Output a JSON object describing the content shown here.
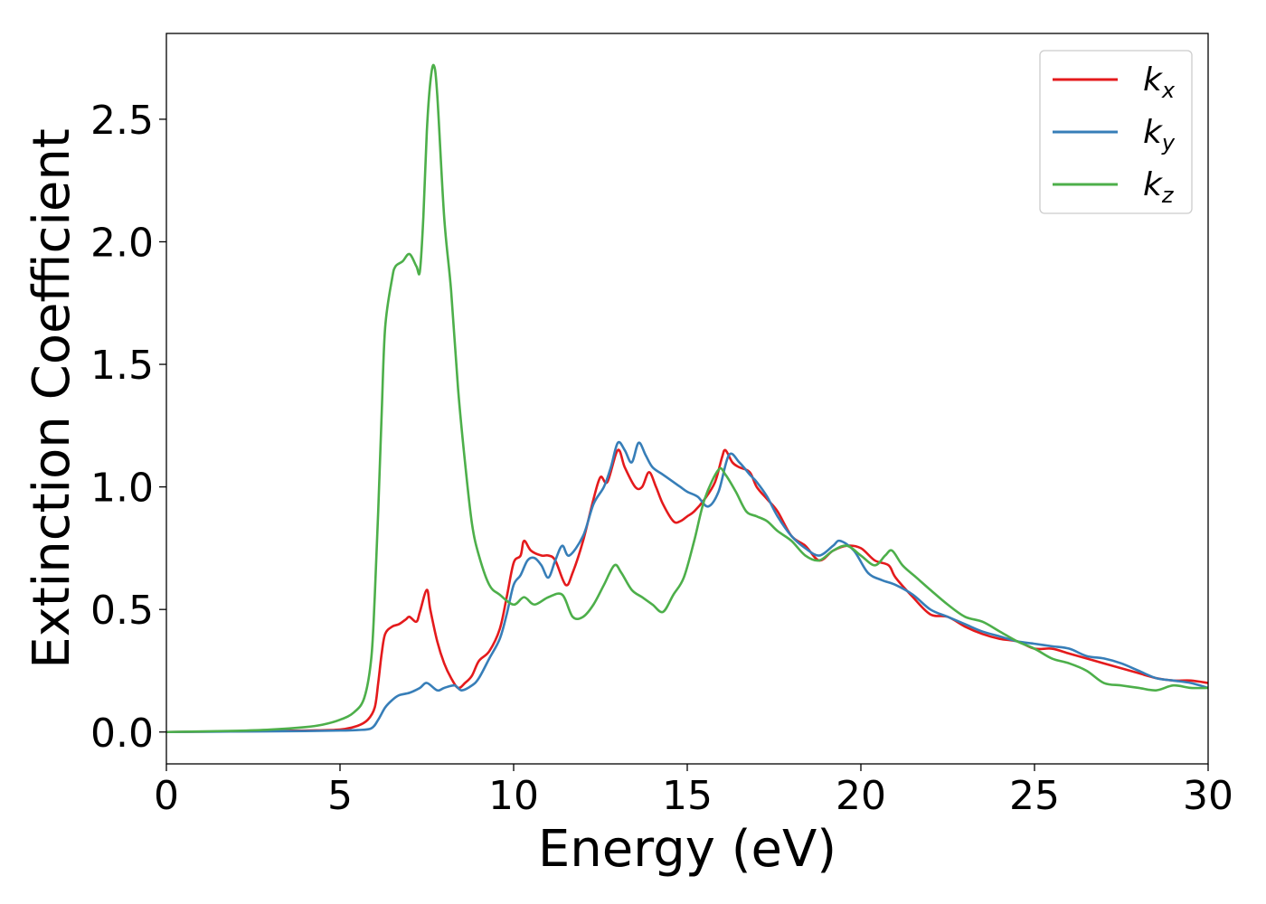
{
  "chart_data": {
    "type": "line",
    "xlabel": "Energy (eV)",
    "ylabel": "Extinction Coefficient",
    "xlim": [
      0,
      30
    ],
    "ylim": [
      -0.13,
      2.85
    ],
    "xticks": [
      0,
      5,
      10,
      15,
      20,
      25,
      30
    ],
    "xtick_labels": [
      "0",
      "5",
      "10",
      "15",
      "20",
      "25",
      "30"
    ],
    "yticks": [
      0.0,
      0.5,
      1.0,
      1.5,
      2.0,
      2.5
    ],
    "ytick_labels": [
      "0.0",
      "0.5",
      "1.0",
      "1.5",
      "2.0",
      "2.5"
    ],
    "grid": false,
    "legend_position": "top-right",
    "series": [
      {
        "name": "k",
        "subscript": "x",
        "color": "#e41a1c",
        "points": [
          [
            0,
            0
          ],
          [
            2,
            0.003
          ],
          [
            4,
            0.006
          ],
          [
            5,
            0.01
          ],
          [
            5.5,
            0.025
          ],
          [
            5.8,
            0.05
          ],
          [
            6.0,
            0.1
          ],
          [
            6.1,
            0.2
          ],
          [
            6.2,
            0.32
          ],
          [
            6.3,
            0.4
          ],
          [
            6.5,
            0.43
          ],
          [
            6.7,
            0.44
          ],
          [
            6.9,
            0.46
          ],
          [
            7.0,
            0.47
          ],
          [
            7.2,
            0.45
          ],
          [
            7.3,
            0.49
          ],
          [
            7.5,
            0.58
          ],
          [
            7.6,
            0.5
          ],
          [
            7.8,
            0.37
          ],
          [
            8.0,
            0.28
          ],
          [
            8.2,
            0.22
          ],
          [
            8.4,
            0.18
          ],
          [
            8.6,
            0.2
          ],
          [
            8.8,
            0.23
          ],
          [
            9.0,
            0.29
          ],
          [
            9.3,
            0.33
          ],
          [
            9.6,
            0.42
          ],
          [
            9.8,
            0.55
          ],
          [
            10.0,
            0.69
          ],
          [
            10.2,
            0.72
          ],
          [
            10.3,
            0.78
          ],
          [
            10.5,
            0.74
          ],
          [
            10.8,
            0.72
          ],
          [
            11.0,
            0.72
          ],
          [
            11.2,
            0.7
          ],
          [
            11.5,
            0.6
          ],
          [
            11.7,
            0.65
          ],
          [
            12.0,
            0.78
          ],
          [
            12.3,
            0.95
          ],
          [
            12.5,
            1.04
          ],
          [
            12.7,
            1.02
          ],
          [
            13.0,
            1.15
          ],
          [
            13.2,
            1.08
          ],
          [
            13.5,
            1.0
          ],
          [
            13.7,
            1.0
          ],
          [
            13.9,
            1.06
          ],
          [
            14.1,
            1.0
          ],
          [
            14.3,
            0.93
          ],
          [
            14.6,
            0.86
          ],
          [
            14.8,
            0.86
          ],
          [
            15.0,
            0.88
          ],
          [
            15.2,
            0.9
          ],
          [
            15.5,
            0.95
          ],
          [
            15.8,
            1.02
          ],
          [
            16.0,
            1.12
          ],
          [
            16.1,
            1.15
          ],
          [
            16.3,
            1.1
          ],
          [
            16.5,
            1.08
          ],
          [
            16.8,
            1.06
          ],
          [
            17.0,
            1.0
          ],
          [
            17.3,
            0.95
          ],
          [
            17.6,
            0.9
          ],
          [
            18.0,
            0.8
          ],
          [
            18.4,
            0.76
          ],
          [
            18.8,
            0.7
          ],
          [
            19.2,
            0.74
          ],
          [
            19.6,
            0.76
          ],
          [
            20.0,
            0.75
          ],
          [
            20.4,
            0.7
          ],
          [
            20.8,
            0.68
          ],
          [
            21.0,
            0.63
          ],
          [
            21.5,
            0.55
          ],
          [
            22.0,
            0.48
          ],
          [
            22.5,
            0.47
          ],
          [
            23.0,
            0.43
          ],
          [
            23.5,
            0.4
          ],
          [
            24.0,
            0.38
          ],
          [
            24.5,
            0.37
          ],
          [
            25.0,
            0.34
          ],
          [
            25.5,
            0.34
          ],
          [
            26.0,
            0.32
          ],
          [
            26.5,
            0.3
          ],
          [
            27.0,
            0.28
          ],
          [
            27.5,
            0.26
          ],
          [
            28.0,
            0.24
          ],
          [
            28.5,
            0.22
          ],
          [
            29.0,
            0.21
          ],
          [
            29.5,
            0.21
          ],
          [
            30.0,
            0.2
          ]
        ]
      },
      {
        "name": "k",
        "subscript": "y",
        "color": "#377eb8",
        "points": [
          [
            0,
            0
          ],
          [
            2,
            0.002
          ],
          [
            4,
            0.004
          ],
          [
            5,
            0.006
          ],
          [
            5.5,
            0.008
          ],
          [
            5.9,
            0.015
          ],
          [
            6.1,
            0.05
          ],
          [
            6.3,
            0.1
          ],
          [
            6.5,
            0.13
          ],
          [
            6.7,
            0.15
          ],
          [
            7.0,
            0.16
          ],
          [
            7.3,
            0.18
          ],
          [
            7.5,
            0.2
          ],
          [
            7.8,
            0.17
          ],
          [
            8.0,
            0.18
          ],
          [
            8.3,
            0.19
          ],
          [
            8.5,
            0.17
          ],
          [
            8.8,
            0.19
          ],
          [
            9.0,
            0.22
          ],
          [
            9.3,
            0.3
          ],
          [
            9.6,
            0.38
          ],
          [
            9.8,
            0.48
          ],
          [
            10.0,
            0.6
          ],
          [
            10.2,
            0.64
          ],
          [
            10.4,
            0.7
          ],
          [
            10.6,
            0.71
          ],
          [
            10.8,
            0.68
          ],
          [
            11.0,
            0.63
          ],
          [
            11.2,
            0.7
          ],
          [
            11.4,
            0.76
          ],
          [
            11.6,
            0.72
          ],
          [
            12.0,
            0.8
          ],
          [
            12.3,
            0.93
          ],
          [
            12.6,
            1.0
          ],
          [
            12.8,
            1.08
          ],
          [
            13.0,
            1.18
          ],
          [
            13.2,
            1.15
          ],
          [
            13.4,
            1.1
          ],
          [
            13.6,
            1.18
          ],
          [
            13.8,
            1.13
          ],
          [
            14.0,
            1.08
          ],
          [
            14.3,
            1.05
          ],
          [
            14.6,
            1.02
          ],
          [
            14.8,
            1.0
          ],
          [
            15.0,
            0.98
          ],
          [
            15.3,
            0.96
          ],
          [
            15.6,
            0.92
          ],
          [
            15.9,
            0.98
          ],
          [
            16.2,
            1.13
          ],
          [
            16.5,
            1.1
          ],
          [
            16.8,
            1.05
          ],
          [
            17.0,
            1.02
          ],
          [
            17.3,
            0.96
          ],
          [
            17.6,
            0.88
          ],
          [
            18.0,
            0.8
          ],
          [
            18.4,
            0.75
          ],
          [
            18.8,
            0.72
          ],
          [
            19.2,
            0.76
          ],
          [
            19.4,
            0.78
          ],
          [
            19.8,
            0.74
          ],
          [
            20.2,
            0.65
          ],
          [
            20.6,
            0.62
          ],
          [
            21.0,
            0.6
          ],
          [
            21.5,
            0.56
          ],
          [
            22.0,
            0.5
          ],
          [
            22.5,
            0.47
          ],
          [
            23.0,
            0.44
          ],
          [
            23.5,
            0.41
          ],
          [
            24.0,
            0.39
          ],
          [
            24.5,
            0.37
          ],
          [
            25.0,
            0.36
          ],
          [
            25.5,
            0.35
          ],
          [
            26.0,
            0.34
          ],
          [
            26.5,
            0.31
          ],
          [
            27.0,
            0.3
          ],
          [
            27.5,
            0.28
          ],
          [
            28.0,
            0.25
          ],
          [
            28.5,
            0.22
          ],
          [
            29.0,
            0.21
          ],
          [
            29.5,
            0.2
          ],
          [
            30.0,
            0.18
          ]
        ]
      },
      {
        "name": "k",
        "subscript": "z",
        "color": "#4daf4a",
        "points": [
          [
            0,
            0
          ],
          [
            2,
            0.005
          ],
          [
            3,
            0.01
          ],
          [
            4,
            0.02
          ],
          [
            4.5,
            0.03
          ],
          [
            5,
            0.05
          ],
          [
            5.4,
            0.08
          ],
          [
            5.7,
            0.14
          ],
          [
            5.9,
            0.3
          ],
          [
            6.0,
            0.55
          ],
          [
            6.1,
            0.9
          ],
          [
            6.2,
            1.3
          ],
          [
            6.3,
            1.65
          ],
          [
            6.5,
            1.85
          ],
          [
            6.6,
            1.9
          ],
          [
            6.8,
            1.92
          ],
          [
            7.0,
            1.95
          ],
          [
            7.2,
            1.9
          ],
          [
            7.3,
            1.88
          ],
          [
            7.4,
            2.1
          ],
          [
            7.5,
            2.45
          ],
          [
            7.6,
            2.65
          ],
          [
            7.7,
            2.72
          ],
          [
            7.8,
            2.6
          ],
          [
            8.0,
            2.1
          ],
          [
            8.2,
            1.8
          ],
          [
            8.4,
            1.4
          ],
          [
            8.6,
            1.1
          ],
          [
            8.8,
            0.85
          ],
          [
            9.0,
            0.72
          ],
          [
            9.3,
            0.6
          ],
          [
            9.6,
            0.56
          ],
          [
            10.0,
            0.52
          ],
          [
            10.3,
            0.55
          ],
          [
            10.6,
            0.52
          ],
          [
            11.0,
            0.55
          ],
          [
            11.4,
            0.56
          ],
          [
            11.7,
            0.47
          ],
          [
            12.0,
            0.47
          ],
          [
            12.3,
            0.52
          ],
          [
            12.6,
            0.6
          ],
          [
            12.9,
            0.68
          ],
          [
            13.1,
            0.65
          ],
          [
            13.4,
            0.58
          ],
          [
            13.7,
            0.55
          ],
          [
            14.0,
            0.52
          ],
          [
            14.3,
            0.49
          ],
          [
            14.6,
            0.56
          ],
          [
            14.9,
            0.63
          ],
          [
            15.2,
            0.78
          ],
          [
            15.5,
            0.95
          ],
          [
            15.9,
            1.07
          ],
          [
            16.1,
            1.05
          ],
          [
            16.4,
            0.98
          ],
          [
            16.7,
            0.9
          ],
          [
            17.0,
            0.88
          ],
          [
            17.3,
            0.86
          ],
          [
            17.6,
            0.82
          ],
          [
            18.0,
            0.78
          ],
          [
            18.4,
            0.72
          ],
          [
            18.8,
            0.7
          ],
          [
            19.2,
            0.74
          ],
          [
            19.6,
            0.76
          ],
          [
            20.0,
            0.72
          ],
          [
            20.4,
            0.68
          ],
          [
            20.7,
            0.72
          ],
          [
            20.9,
            0.74
          ],
          [
            21.2,
            0.68
          ],
          [
            21.6,
            0.63
          ],
          [
            22.0,
            0.58
          ],
          [
            22.5,
            0.52
          ],
          [
            23.0,
            0.47
          ],
          [
            23.5,
            0.45
          ],
          [
            24.0,
            0.41
          ],
          [
            24.5,
            0.37
          ],
          [
            25.0,
            0.34
          ],
          [
            25.5,
            0.3
          ],
          [
            26.0,
            0.28
          ],
          [
            26.5,
            0.25
          ],
          [
            27.0,
            0.2
          ],
          [
            27.5,
            0.19
          ],
          [
            28.0,
            0.18
          ],
          [
            28.5,
            0.17
          ],
          [
            29.0,
            0.19
          ],
          [
            29.5,
            0.18
          ],
          [
            30.0,
            0.18
          ]
        ]
      }
    ]
  }
}
